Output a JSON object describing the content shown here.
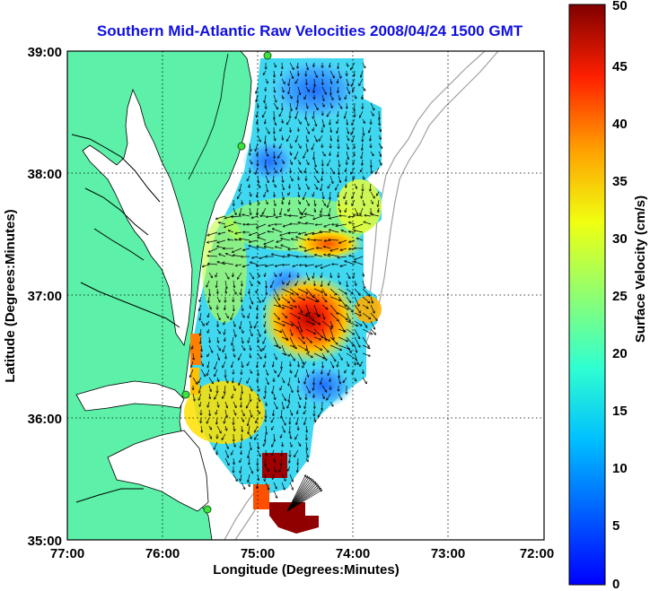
{
  "chart_data": {
    "type": "heatmap",
    "title": "Southern Mid-Atlantic Raw Velocities 2008/04/24 1500 GMT",
    "xlabel": "Longitude (Degrees:Minutes)",
    "ylabel": "Latitude (Degrees:Minutes)",
    "x_ticks": [
      "77:00",
      "76:00",
      "75:00",
      "74:00",
      "73:00",
      "72:00"
    ],
    "y_ticks": [
      "39:00",
      "38:00",
      "37:00",
      "36:00",
      "35:00"
    ],
    "xlim": [
      -77,
      -72
    ],
    "ylim": [
      35,
      39
    ],
    "grid": true,
    "colorbar": {
      "label": "Surface Velocity (cm/s)",
      "min": 0,
      "max": 50,
      "ticks": [
        "50",
        "45",
        "40",
        "35",
        "30",
        "25",
        "20",
        "15",
        "10",
        "5",
        "0"
      ]
    },
    "colors": {
      "land": "#5cf0a8",
      "water": "#ffffff",
      "bathymetry": "#a0a0a0",
      "title": "#1010e0",
      "station": "#40e040"
    }
  }
}
